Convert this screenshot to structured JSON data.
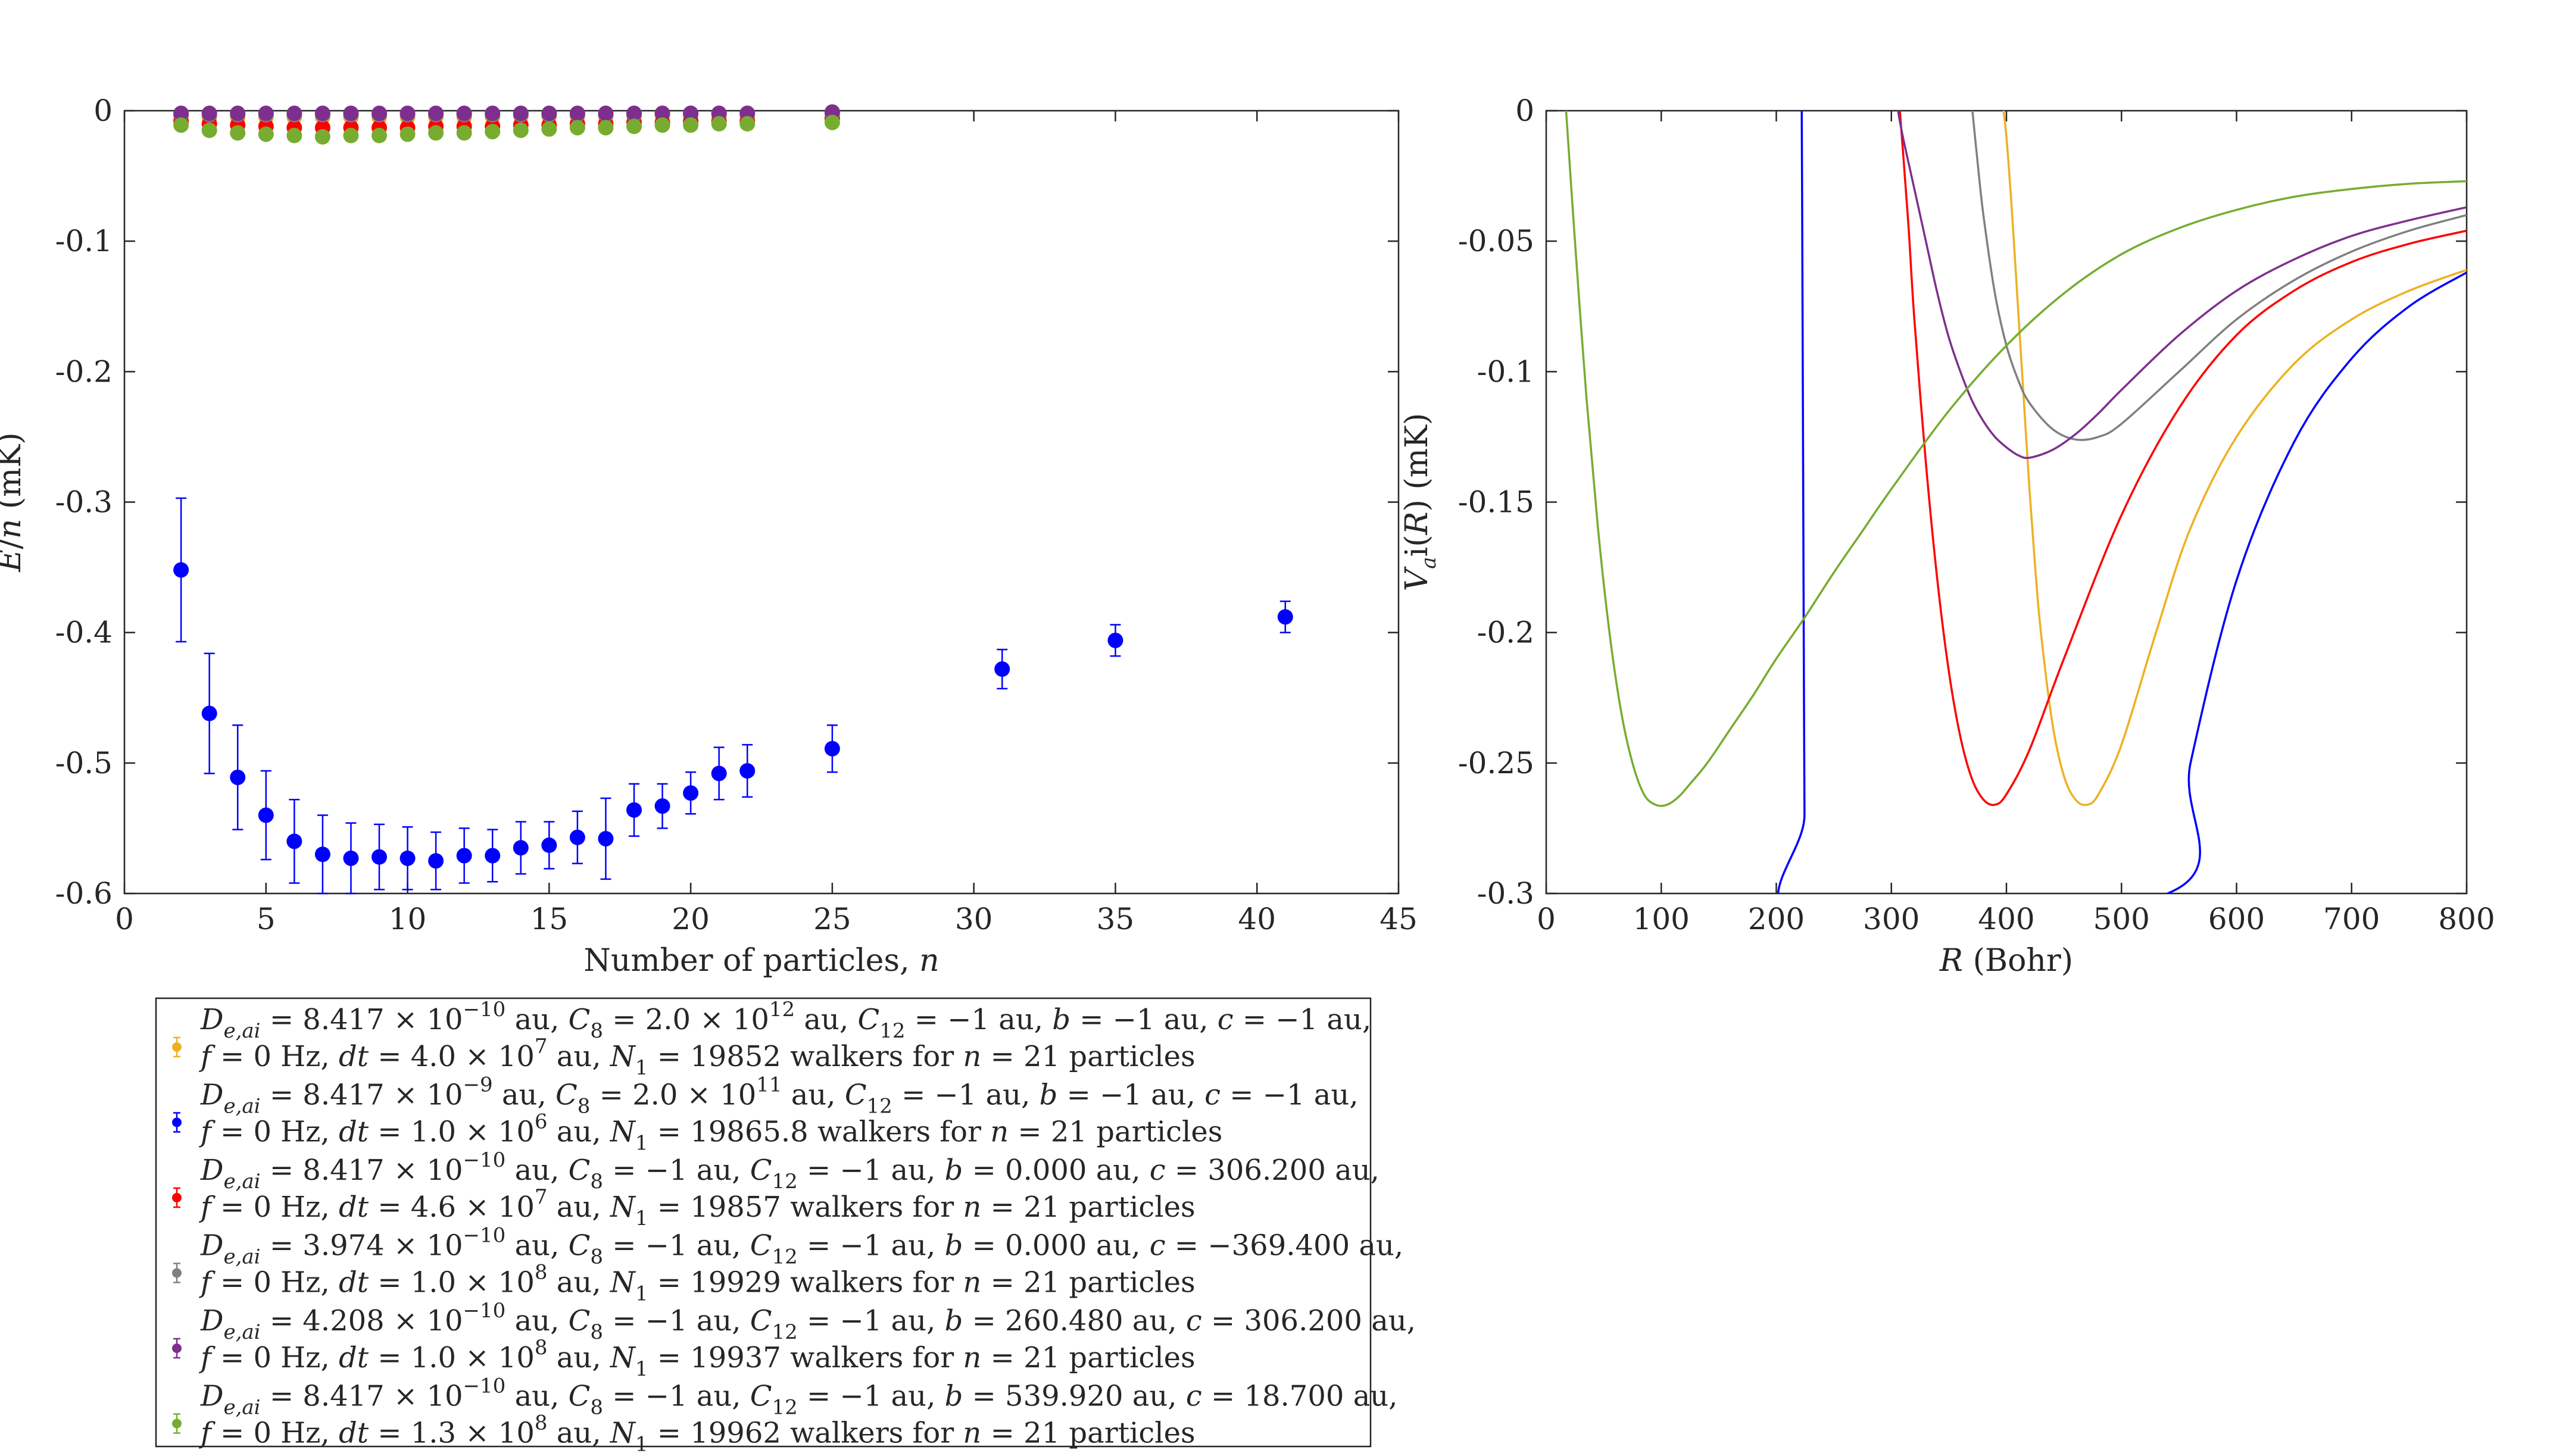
{
  "chart_data": [
    {
      "type": "scatter",
      "xlabel": "Number of particles, n",
      "ylabel": "E/n (mK)",
      "xlim": [
        0,
        45
      ],
      "ylim": [
        -0.6,
        0
      ],
      "xticks": [
        0,
        5,
        10,
        15,
        20,
        25,
        30,
        35,
        40,
        45
      ],
      "xtick_labels": [
        "0",
        "5",
        "10",
        "15",
        "20",
        "25",
        "30",
        "35",
        "40",
        "45"
      ],
      "yticks": [
        0,
        -0.1,
        -0.2,
        -0.3,
        -0.4,
        -0.5,
        -0.6
      ],
      "ytick_labels": [
        "0",
        "-0.1",
        "-0.2",
        "-0.3",
        "-0.4",
        "-0.5",
        "-0.6"
      ],
      "grid": false,
      "series": [
        {
          "color": "#EDB120",
          "x": [
            2,
            3,
            4,
            5,
            6,
            7,
            8,
            9,
            10,
            11,
            12,
            13,
            14,
            15,
            16,
            17,
            18,
            19,
            20,
            21,
            22,
            25
          ],
          "y": [
            -0.004,
            -0.005,
            -0.005,
            -0.005,
            -0.005,
            -0.005,
            -0.005,
            -0.005,
            -0.005,
            -0.005,
            -0.005,
            -0.005,
            -0.004,
            -0.004,
            -0.004,
            -0.004,
            -0.004,
            -0.004,
            -0.004,
            -0.004,
            -0.004,
            -0.003
          ]
        },
        {
          "color": "#0000FF",
          "x": [
            2,
            3,
            4,
            5,
            6,
            7,
            8,
            9,
            10,
            11,
            12,
            13,
            14,
            15,
            16,
            17,
            18,
            19,
            20,
            21,
            22,
            25,
            31,
            35,
            41
          ],
          "y": [
            -0.352,
            -0.462,
            -0.511,
            -0.54,
            -0.56,
            -0.57,
            -0.573,
            -0.572,
            -0.573,
            -0.575,
            -0.571,
            -0.571,
            -0.565,
            -0.563,
            -0.557,
            -0.558,
            -0.536,
            -0.533,
            -0.523,
            -0.508,
            -0.506,
            -0.489,
            -0.428,
            -0.406,
            -0.388
          ],
          "err": [
            0.055,
            0.046,
            0.04,
            0.034,
            0.032,
            0.03,
            0.027,
            0.025,
            0.024,
            0.022,
            0.021,
            0.02,
            0.02,
            0.018,
            0.02,
            0.031,
            0.02,
            0.017,
            0.016,
            0.02,
            0.02,
            0.018,
            0.015,
            0.012,
            0.012
          ]
        },
        {
          "color": "#FF0000",
          "x": [
            2,
            3,
            4,
            5,
            6,
            7,
            8,
            9,
            10,
            11,
            12,
            13,
            14,
            15,
            16,
            17,
            18,
            19,
            20,
            21,
            22,
            25
          ],
          "y": [
            -0.008,
            -0.01,
            -0.011,
            -0.012,
            -0.013,
            -0.013,
            -0.013,
            -0.013,
            -0.013,
            -0.012,
            -0.012,
            -0.012,
            -0.011,
            -0.011,
            -0.01,
            -0.01,
            -0.009,
            -0.009,
            -0.008,
            -0.008,
            -0.008,
            -0.006
          ]
        },
        {
          "color": "#808080",
          "x": [
            2,
            3,
            4,
            5,
            6,
            7,
            8,
            9,
            10,
            11,
            12,
            13,
            14,
            15,
            16,
            17,
            18,
            19,
            20,
            21,
            22,
            25
          ],
          "y": [
            -0.003,
            -0.003,
            -0.003,
            -0.003,
            -0.003,
            -0.003,
            -0.003,
            -0.003,
            -0.003,
            -0.003,
            -0.003,
            -0.003,
            -0.003,
            -0.003,
            -0.003,
            -0.003,
            -0.003,
            -0.002,
            -0.002,
            -0.002,
            -0.002,
            -0.002
          ]
        },
        {
          "color": "#7E2F8E",
          "x": [
            2,
            3,
            4,
            5,
            6,
            7,
            8,
            9,
            10,
            11,
            12,
            13,
            14,
            15,
            16,
            17,
            18,
            19,
            20,
            21,
            22,
            25
          ],
          "y": [
            -0.002,
            -0.002,
            -0.002,
            -0.002,
            -0.002,
            -0.002,
            -0.002,
            -0.002,
            -0.002,
            -0.002,
            -0.002,
            -0.002,
            -0.002,
            -0.002,
            -0.002,
            -0.002,
            -0.002,
            -0.002,
            -0.002,
            -0.002,
            -0.002,
            -0.001
          ]
        },
        {
          "color": "#77AC30",
          "x": [
            2,
            3,
            4,
            5,
            6,
            7,
            8,
            9,
            10,
            11,
            12,
            13,
            14,
            15,
            16,
            17,
            18,
            19,
            20,
            21,
            22,
            25
          ],
          "y": [
            -0.011,
            -0.015,
            -0.017,
            -0.018,
            -0.019,
            -0.02,
            -0.019,
            -0.019,
            -0.018,
            -0.017,
            -0.017,
            -0.016,
            -0.015,
            -0.014,
            -0.013,
            -0.013,
            -0.012,
            -0.011,
            -0.011,
            -0.01,
            -0.01,
            -0.009
          ]
        }
      ]
    },
    {
      "type": "line",
      "xlabel": "R (Bohr)",
      "ylabel": "V_ai(R) (mK)",
      "xlim": [
        0,
        800
      ],
      "ylim": [
        -0.3,
        0
      ],
      "xticks": [
        0,
        100,
        200,
        300,
        400,
        500,
        600,
        700,
        800
      ],
      "xtick_labels": [
        "0",
        "100",
        "200",
        "300",
        "400",
        "500",
        "600",
        "700",
        "800"
      ],
      "yticks": [
        0,
        -0.05,
        -0.1,
        -0.15,
        -0.2,
        -0.25,
        -0.3
      ],
      "ytick_labels": [
        "0",
        "-0.05",
        "-0.1",
        "-0.15",
        "-0.2",
        "-0.25",
        "-0.3"
      ],
      "grid": false,
      "series": [
        {
          "color": "#EDB120",
          "x": [
            396,
            400,
            405,
            410,
            415,
            420,
            425,
            430,
            440,
            450,
            460,
            470,
            480,
            500,
            530,
            560,
            600,
            650,
            700,
            750,
            800
          ],
          "y": [
            0.005,
            -0.01,
            -0.04,
            -0.075,
            -0.11,
            -0.145,
            -0.175,
            -0.2,
            -0.235,
            -0.255,
            -0.264,
            -0.266,
            -0.262,
            -0.243,
            -0.2,
            -0.16,
            -0.125,
            -0.097,
            -0.08,
            -0.069,
            -0.061
          ]
        },
        {
          "color": "#0000FF",
          "x": [
            222,
            222.5,
            223,
            223.5,
            224,
            224.5,
            225,
            540,
            560,
            600,
            650,
            700,
            750,
            800
          ],
          "y": [
            0.01,
            -0.04,
            -0.1,
            -0.16,
            -0.22,
            -0.27,
            -0.31,
            -0.3,
            -0.25,
            -0.18,
            -0.127,
            -0.095,
            -0.075,
            -0.062
          ]
        },
        {
          "color": "#FF0000",
          "x": [
            307,
            310,
            315,
            320,
            330,
            340,
            350,
            360,
            370,
            380,
            390,
            400,
            420,
            450,
            500,
            550,
            600,
            650,
            700,
            750,
            800
          ],
          "y": [
            0.002,
            -0.015,
            -0.045,
            -0.08,
            -0.135,
            -0.18,
            -0.215,
            -0.24,
            -0.256,
            -0.264,
            -0.266,
            -0.262,
            -0.245,
            -0.21,
            -0.155,
            -0.114,
            -0.086,
            -0.069,
            -0.058,
            -0.051,
            -0.046
          ]
        },
        {
          "color": "#808080",
          "x": [
            370,
            375,
            380,
            390,
            400,
            410,
            420,
            440,
            460,
            480,
            500,
            550,
            600,
            650,
            700,
            750,
            800
          ],
          "y": [
            0.002,
            -0.02,
            -0.04,
            -0.07,
            -0.09,
            -0.103,
            -0.112,
            -0.122,
            -0.126,
            -0.125,
            -0.12,
            -0.1,
            -0.08,
            -0.065,
            -0.054,
            -0.046,
            -0.04
          ]
        },
        {
          "color": "#7E2F8E",
          "x": [
            305,
            310,
            320,
            330,
            340,
            350,
            360,
            370,
            380,
            390,
            400,
            410,
            420,
            440,
            460,
            480,
            500,
            550,
            600,
            650,
            700,
            750,
            800
          ],
          "y": [
            0.002,
            -0.01,
            -0.03,
            -0.05,
            -0.07,
            -0.087,
            -0.1,
            -0.111,
            -0.119,
            -0.125,
            -0.129,
            -0.132,
            -0.133,
            -0.13,
            -0.124,
            -0.116,
            -0.107,
            -0.086,
            -0.069,
            -0.057,
            -0.048,
            -0.042,
            -0.037
          ]
        },
        {
          "color": "#77AC30",
          "x": [
            17,
            25,
            35,
            45,
            55,
            65,
            75,
            85,
            95,
            105,
            115,
            125,
            140,
            160,
            180,
            200,
            225,
            250,
            275,
            300,
            350,
            400,
            450,
            500,
            550,
            600,
            650,
            700,
            750,
            800
          ],
          "y": [
            0.002,
            -0.05,
            -0.11,
            -0.16,
            -0.2,
            -0.23,
            -0.25,
            -0.262,
            -0.266,
            -0.266,
            -0.263,
            -0.258,
            -0.25,
            -0.237,
            -0.224,
            -0.21,
            -0.194,
            -0.177,
            -0.161,
            -0.145,
            -0.115,
            -0.09,
            -0.07,
            -0.055,
            -0.045,
            -0.038,
            -0.033,
            -0.03,
            -0.028,
            -0.027
          ]
        }
      ]
    }
  ],
  "legend": {
    "placement": "below-left",
    "entries": [
      {
        "color": "#EDB120",
        "line1": "D_{e,ai} = 8.417 × 10^{−10} au, C_8 = 2.0 × 10^{12} au, C_{12} = −1 au, b = −1 au, c = −1 au,",
        "line2": "f = 0 Hz, dt = 4.0 × 10^7 au, N_1 = 19852 walkers for n = 21 particles"
      },
      {
        "color": "#0000FF",
        "line1": "D_{e,ai} = 8.417 × 10^{−9} au, C_8 = 2.0 × 10^{11} au, C_{12} = −1 au, b = −1 au, c = −1 au,",
        "line2": "f = 0 Hz, dt = 1.0 × 10^6 au, N_1 = 19865.8 walkers for n = 21 particles"
      },
      {
        "color": "#FF0000",
        "line1": "D_{e,ai} = 8.417 × 10^{−10} au, C_8 = −1 au, C_{12} = −1 au, b = 0.000 au, c = 306.200 au,",
        "line2": "f = 0 Hz, dt = 4.6 × 10^7 au, N_1 = 19857 walkers for n = 21 particles"
      },
      {
        "color": "#808080",
        "line1": "D_{e,ai} = 3.974 × 10^{−10} au, C_8 = −1 au, C_{12} = −1 au, b = 0.000 au, c = −369.400 au,",
        "line2": "f = 0 Hz, dt = 1.0 × 10^8 au, N_1 = 19929 walkers for n = 21 particles"
      },
      {
        "color": "#7E2F8E",
        "line1": "D_{e,ai} = 4.208 × 10^{−10} au, C_8 = −1 au, C_{12} = −1 au, b = 260.480 au, c = 306.200 au,",
        "line2": "f = 0 Hz, dt = 1.0 × 10^8 au, N_1 = 19937 walkers for n = 21 particles"
      },
      {
        "color": "#77AC30",
        "line1": "D_{e,ai} = 8.417 × 10^{−10} au, C_8 = −1 au, C_{12} = −1 au, b = 539.920 au, c = 18.700 au,",
        "line2": "f = 0 Hz, dt = 1.3 × 10^8 au, N_1 = 19962 walkers for n = 21 particles"
      }
    ]
  }
}
